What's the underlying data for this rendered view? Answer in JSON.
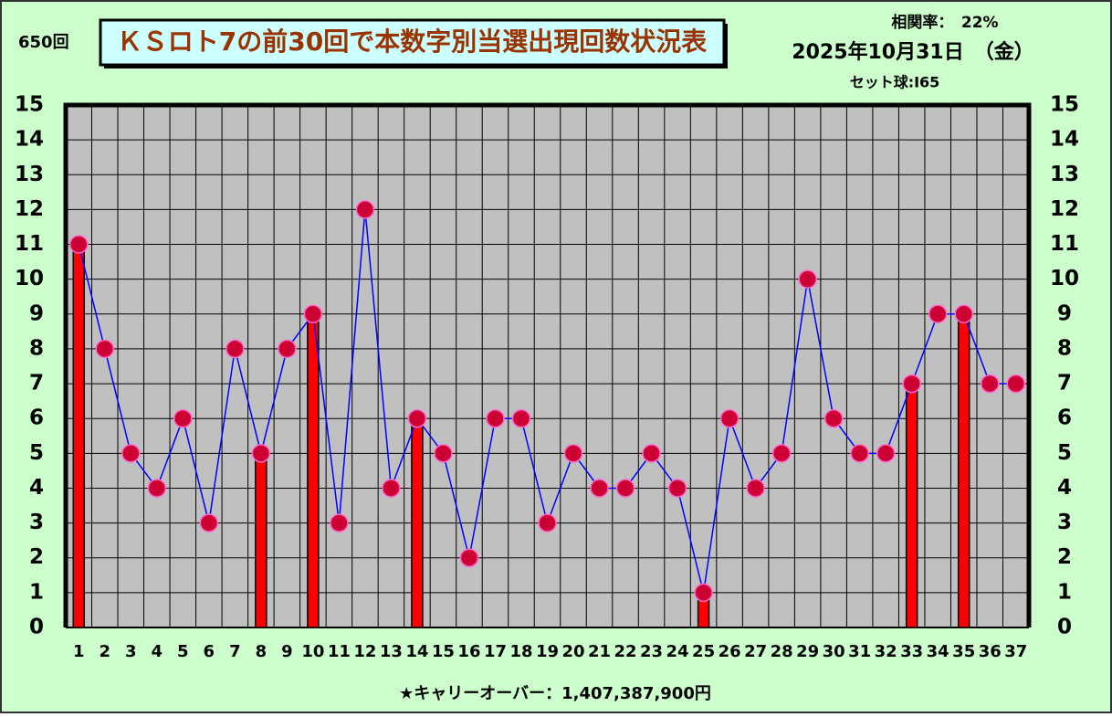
{
  "chart_data": {
    "type": "combo",
    "draw_number": "650回",
    "title": "ＫＳロト7の前30回で本数字別当選出現回数状況表",
    "correlation": "相関率：　22%",
    "date": "2025年10月31日　（金）",
    "set_ball": "セット球:I65",
    "footer": "★キャリーオーバー：1,407,387,900円",
    "categories": [
      "1",
      "2",
      "3",
      "4",
      "5",
      "6",
      "7",
      "8",
      "9",
      "10",
      "11",
      "12",
      "13",
      "14",
      "15",
      "16",
      "17",
      "18",
      "19",
      "20",
      "21",
      "22",
      "23",
      "24",
      "25",
      "26",
      "27",
      "28",
      "29",
      "30",
      "31",
      "32",
      "33",
      "34",
      "35",
      "36",
      "37"
    ],
    "series": [
      {
        "type": "bar",
        "color": "#ff0000",
        "values": [
          11,
          null,
          null,
          null,
          null,
          null,
          null,
          5,
          null,
          9,
          null,
          null,
          null,
          6,
          null,
          null,
          null,
          null,
          null,
          null,
          null,
          null,
          null,
          null,
          1,
          null,
          null,
          null,
          null,
          null,
          null,
          null,
          7,
          null,
          9,
          null,
          null
        ]
      },
      {
        "type": "line",
        "color": "#0000ff",
        "marker_color": "#cc0033",
        "values": [
          11,
          8,
          5,
          4,
          6,
          3,
          8,
          5,
          8,
          9,
          3,
          12,
          4,
          6,
          5,
          2,
          6,
          6,
          3,
          5,
          4,
          4,
          5,
          4,
          1,
          6,
          4,
          5,
          10,
          6,
          5,
          5,
          7,
          9,
          9,
          7,
          7
        ]
      }
    ],
    "ylim": [
      0,
      15
    ],
    "yticks": [
      0,
      1,
      2,
      3,
      4,
      5,
      6,
      7,
      8,
      9,
      10,
      11,
      12,
      13,
      14,
      15
    ],
    "y2lim": [
      0,
      15
    ],
    "y2ticks": [
      0,
      1,
      2,
      3,
      4,
      5,
      6,
      7,
      8,
      9,
      10,
      11,
      12,
      13,
      14,
      15
    ],
    "grid": true
  }
}
